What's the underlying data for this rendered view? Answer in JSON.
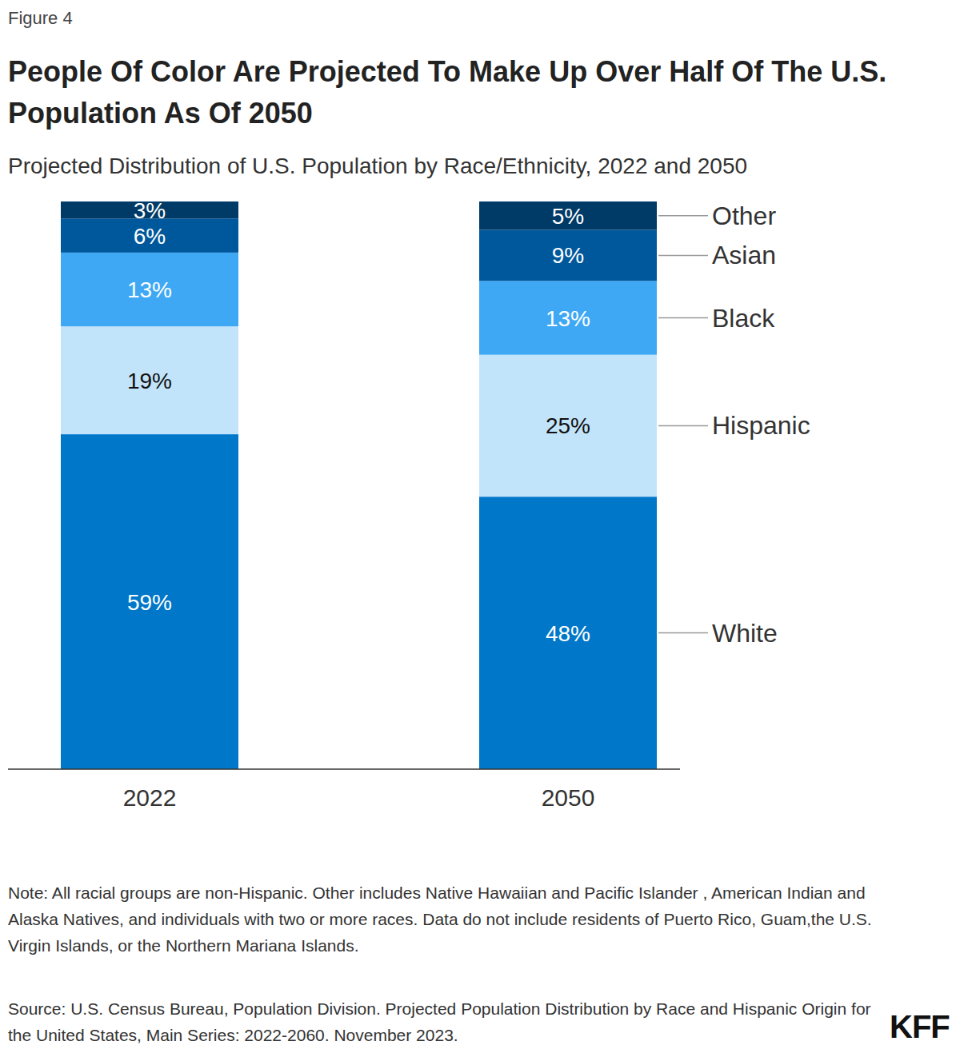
{
  "chart_data": {
    "type": "bar",
    "stacked": true,
    "figure_label": "Figure 4",
    "title": "People Of Color Are Projected To Make Up Over Half Of The U.S. Population As Of 2050",
    "subtitle": "Projected Distribution of U.S. Population by Race/Ethnicity, 2022 and 2050",
    "note": "Note: All racial groups are non-Hispanic. Other includes Native Hawaiian and Pacific Islander , American Indian and Alaska Natives, and individuals with two or more races. Data do not include residents of Puerto Rico, Guam,the U.S. Virgin Islands, or the Northern Mariana Islands.",
    "source": "Source: U.S. Census Bureau, Population Division. Projected Population Distribution by Race and Hispanic Origin for the United States, Main Series: 2022-2060. November 2023.",
    "credit": "KFF",
    "categories": [
      "2022",
      "2050"
    ],
    "series": [
      {
        "name": "White",
        "color": "#0077c8",
        "values": [
          59,
          48
        ],
        "value_labels": [
          "59%",
          "48%"
        ]
      },
      {
        "name": "Hispanic",
        "color": "#c2e4fb",
        "values": [
          19,
          25
        ],
        "value_labels": [
          "19%",
          "25%"
        ]
      },
      {
        "name": "Black",
        "color": "#3ea8f5",
        "values": [
          13,
          13
        ],
        "value_labels": [
          "13%",
          "13%"
        ]
      },
      {
        "name": "Asian",
        "color": "#00589c",
        "values": [
          6,
          9
        ],
        "value_labels": [
          "6%",
          "9%"
        ]
      },
      {
        "name": "Other",
        "color": "#003a66",
        "values": [
          3,
          5
        ],
        "value_labels": [
          "3%",
          "5%"
        ]
      }
    ],
    "ylim": [
      0,
      100
    ],
    "data_labels": true,
    "legend": "right",
    "tick_labels": "x",
    "grid": false
  }
}
